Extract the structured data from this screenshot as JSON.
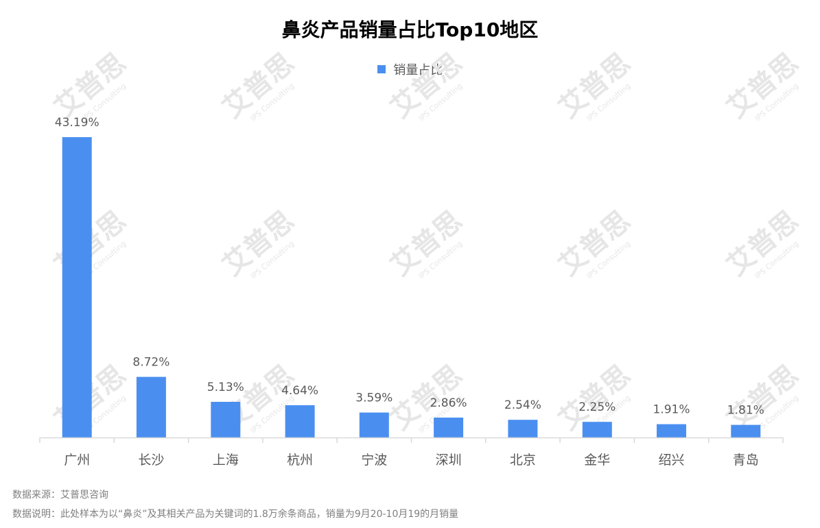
{
  "colors": {
    "bar": "#4a8ff0",
    "axis": "#d9d9d9",
    "label": "#595959",
    "watermark": "#e6e6e6"
  },
  "watermark": {
    "text": "艾普思",
    "subtext": "IPS Consulting"
  },
  "footnotes": {
    "source": "数据来源：艾普思咨询",
    "note": "数据说明：此处样本为以“鼻炎”及其相关产品为关键词的1.8万余条商品，销量为9月20-10月19的月销量"
  },
  "chart_data": {
    "type": "bar",
    "title": "鼻炎产品销量占比Top10地区",
    "categories": [
      "广州",
      "长沙",
      "上海",
      "杭州",
      "宁波",
      "深圳",
      "北京",
      "金华",
      "绍兴",
      "青岛"
    ],
    "series": [
      {
        "name": "销量占比",
        "values": [
          43.19,
          8.72,
          5.13,
          4.64,
          3.59,
          2.86,
          2.54,
          2.25,
          1.91,
          1.81
        ],
        "labels": [
          "43.19%",
          "8.72%",
          "5.13%",
          "4.64%",
          "3.59%",
          "2.86%",
          "2.54%",
          "2.25%",
          "1.91%",
          "1.81%"
        ]
      }
    ],
    "ylim": [
      0,
      43.19
    ],
    "grid": false,
    "legend": "top-center",
    "data_labels": true
  }
}
